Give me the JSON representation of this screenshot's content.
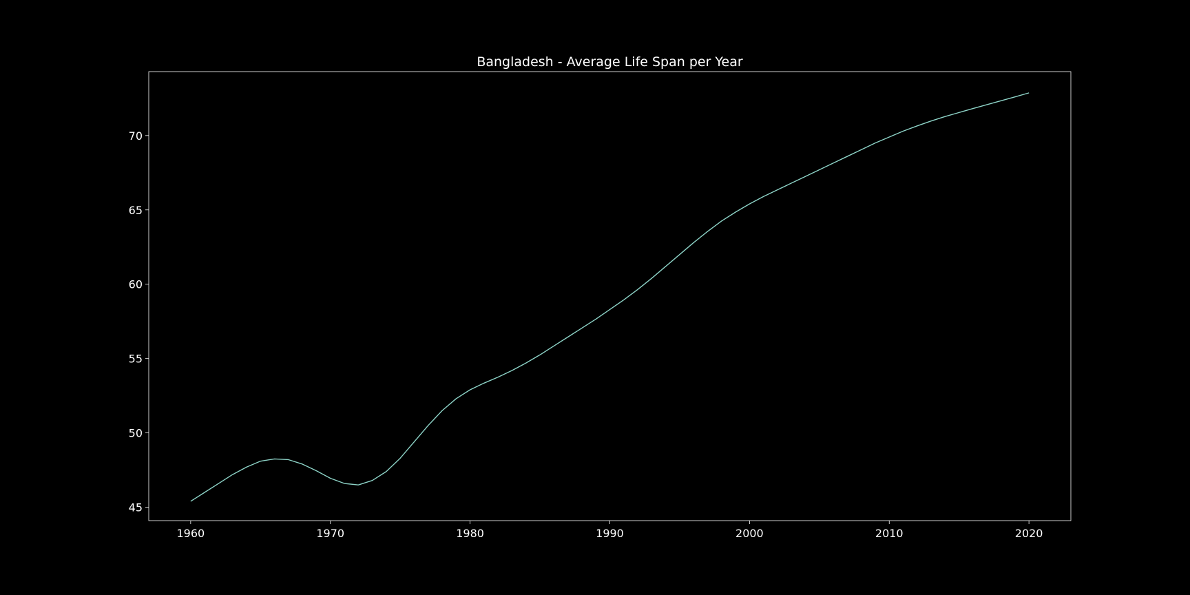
{
  "chart_data": {
    "type": "line",
    "title": "Bangladesh - Average Life Span per Year",
    "xlabel": "",
    "ylabel": "",
    "xlim": [
      1957,
      2023
    ],
    "ylim": [
      44.1,
      74.3
    ],
    "xticks": [
      1960,
      1970,
      1980,
      1990,
      2000,
      2010,
      2020
    ],
    "yticks": [
      45,
      50,
      55,
      60,
      65,
      70
    ],
    "grid": false,
    "legend": "none",
    "colors": {
      "background": "#000000",
      "line": "#8dd3c7",
      "axes": "#ffffff",
      "text": "#ffffff"
    },
    "series": [
      {
        "x": [
          1960,
          1961,
          1962,
          1963,
          1964,
          1965,
          1966,
          1967,
          1968,
          1969,
          1970,
          1971,
          1972,
          1973,
          1974,
          1975,
          1976,
          1977,
          1978,
          1979,
          1980,
          1981,
          1982,
          1983,
          1984,
          1985,
          1986,
          1987,
          1988,
          1989,
          1990,
          1991,
          1992,
          1993,
          1994,
          1995,
          1996,
          1997,
          1998,
          1999,
          2000,
          2001,
          2002,
          2003,
          2004,
          2005,
          2006,
          2007,
          2008,
          2009,
          2010,
          2011,
          2012,
          2013,
          2014,
          2015,
          2016,
          2017,
          2018,
          2019,
          2020
        ],
        "y": [
          45.4,
          46.0,
          46.6,
          47.2,
          47.7,
          48.1,
          48.25,
          48.2,
          47.9,
          47.45,
          46.95,
          46.6,
          46.5,
          46.8,
          47.4,
          48.3,
          49.4,
          50.5,
          51.5,
          52.3,
          52.9,
          53.35,
          53.75,
          54.2,
          54.7,
          55.25,
          55.85,
          56.45,
          57.05,
          57.65,
          58.3,
          58.95,
          59.65,
          60.4,
          61.2,
          62.0,
          62.8,
          63.55,
          64.25,
          64.85,
          65.4,
          65.9,
          66.35,
          66.8,
          67.25,
          67.7,
          68.15,
          68.6,
          69.05,
          69.5,
          69.9,
          70.3,
          70.65,
          70.98,
          71.28,
          71.55,
          71.82,
          72.08,
          72.34,
          72.6,
          72.87
        ]
      }
    ]
  }
}
